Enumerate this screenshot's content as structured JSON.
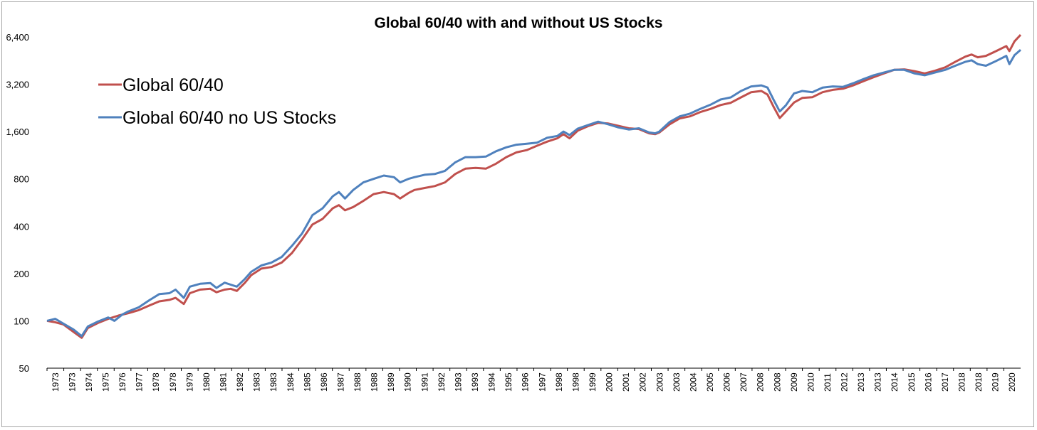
{
  "chart_data": {
    "type": "line",
    "title": "Global 60/40 with and without US Stocks",
    "xlabel": "",
    "ylabel": "",
    "y_scale": "log2",
    "ylim": [
      50,
      8000
    ],
    "yticks": [
      50,
      100,
      200,
      400,
      800,
      1600,
      3200,
      6400
    ],
    "ytick_labels": [
      "50",
      "100",
      "200",
      "400",
      "800",
      "1,600",
      "3,200",
      "6,400"
    ],
    "xlim": [
      1973.0,
      2020.7
    ],
    "xtick_labels": [
      "1973",
      "1973",
      "1974",
      "1975",
      "1976",
      "1977",
      "1978",
      "1978",
      "1979",
      "1980",
      "1981",
      "1982",
      "1983",
      "1983",
      "1984",
      "1985",
      "1986",
      "1987",
      "1988",
      "1988",
      "1989",
      "1990",
      "1991",
      "1992",
      "1993",
      "1993",
      "1994",
      "1995",
      "1996",
      "1997",
      "1998",
      "1998",
      "1999",
      "2000",
      "2001",
      "2002",
      "2003",
      "2003",
      "2004",
      "2005",
      "2006",
      "2007",
      "2008",
      "2008",
      "2009",
      "2010",
      "2011",
      "2012",
      "2013",
      "2013",
      "2014",
      "2015",
      "2016",
      "2017",
      "2018",
      "2018",
      "2019",
      "2020"
    ],
    "legend_position": "top-left",
    "grid": false,
    "series": [
      {
        "name": "Global 60/40",
        "color": "#c0504d",
        "points": [
          [
            1973.0,
            100
          ],
          [
            1973.4,
            98
          ],
          [
            1973.8,
            95
          ],
          [
            1974.3,
            85
          ],
          [
            1974.7,
            78
          ],
          [
            1975.0,
            90
          ],
          [
            1975.5,
            97
          ],
          [
            1976.0,
            103
          ],
          [
            1976.5,
            108
          ],
          [
            1977.0,
            112
          ],
          [
            1977.5,
            117
          ],
          [
            1978.0,
            125
          ],
          [
            1978.5,
            133
          ],
          [
            1979.0,
            136
          ],
          [
            1979.3,
            140
          ],
          [
            1979.7,
            128
          ],
          [
            1980.0,
            150
          ],
          [
            1980.5,
            158
          ],
          [
            1981.0,
            160
          ],
          [
            1981.3,
            152
          ],
          [
            1981.7,
            158
          ],
          [
            1982.0,
            160
          ],
          [
            1982.3,
            155
          ],
          [
            1982.7,
            175
          ],
          [
            1983.0,
            195
          ],
          [
            1983.5,
            215
          ],
          [
            1984.0,
            220
          ],
          [
            1984.5,
            235
          ],
          [
            1985.0,
            270
          ],
          [
            1985.5,
            330
          ],
          [
            1986.0,
            410
          ],
          [
            1986.5,
            445
          ],
          [
            1987.0,
            520
          ],
          [
            1987.3,
            545
          ],
          [
            1987.6,
            505
          ],
          [
            1988.0,
            530
          ],
          [
            1988.5,
            580
          ],
          [
            1989.0,
            640
          ],
          [
            1989.5,
            660
          ],
          [
            1990.0,
            640
          ],
          [
            1990.3,
            600
          ],
          [
            1990.7,
            650
          ],
          [
            1991.0,
            680
          ],
          [
            1991.5,
            700
          ],
          [
            1992.0,
            720
          ],
          [
            1992.5,
            760
          ],
          [
            1993.0,
            860
          ],
          [
            1993.5,
            930
          ],
          [
            1994.0,
            940
          ],
          [
            1994.5,
            930
          ],
          [
            1995.0,
            1000
          ],
          [
            1995.5,
            1100
          ],
          [
            1996.0,
            1180
          ],
          [
            1996.5,
            1220
          ],
          [
            1997.0,
            1300
          ],
          [
            1997.5,
            1380
          ],
          [
            1998.0,
            1450
          ],
          [
            1998.3,
            1540
          ],
          [
            1998.6,
            1450
          ],
          [
            1999.0,
            1620
          ],
          [
            1999.5,
            1730
          ],
          [
            2000.0,
            1820
          ],
          [
            2000.5,
            1800
          ],
          [
            2001.0,
            1740
          ],
          [
            2001.5,
            1680
          ],
          [
            2002.0,
            1660
          ],
          [
            2002.5,
            1560
          ],
          [
            2002.8,
            1540
          ],
          [
            2003.0,
            1580
          ],
          [
            2003.5,
            1780
          ],
          [
            2004.0,
            1940
          ],
          [
            2004.5,
            2000
          ],
          [
            2005.0,
            2130
          ],
          [
            2005.5,
            2230
          ],
          [
            2006.0,
            2360
          ],
          [
            2006.5,
            2440
          ],
          [
            2007.0,
            2640
          ],
          [
            2007.5,
            2850
          ],
          [
            2008.0,
            2900
          ],
          [
            2008.3,
            2750
          ],
          [
            2008.6,
            2300
          ],
          [
            2008.9,
            1950
          ],
          [
            2009.2,
            2150
          ],
          [
            2009.6,
            2450
          ],
          [
            2010.0,
            2620
          ],
          [
            2010.5,
            2650
          ],
          [
            2011.0,
            2850
          ],
          [
            2011.5,
            2950
          ],
          [
            2012.0,
            3000
          ],
          [
            2012.5,
            3150
          ],
          [
            2013.0,
            3350
          ],
          [
            2013.5,
            3550
          ],
          [
            2014.0,
            3750
          ],
          [
            2014.5,
            3950
          ],
          [
            2015.0,
            3980
          ],
          [
            2015.5,
            3880
          ],
          [
            2016.0,
            3750
          ],
          [
            2016.5,
            3900
          ],
          [
            2017.0,
            4100
          ],
          [
            2017.5,
            4450
          ],
          [
            2018.0,
            4800
          ],
          [
            2018.3,
            4950
          ],
          [
            2018.6,
            4750
          ],
          [
            2019.0,
            4850
          ],
          [
            2019.5,
            5200
          ],
          [
            2020.0,
            5600
          ],
          [
            2020.15,
            5200
          ],
          [
            2020.4,
            6000
          ],
          [
            2020.7,
            6600
          ]
        ]
      },
      {
        "name": "Global 60/40 no US Stocks",
        "color": "#4f81bd",
        "points": [
          [
            1973.0,
            100
          ],
          [
            1973.4,
            103
          ],
          [
            1973.8,
            96
          ],
          [
            1974.3,
            88
          ],
          [
            1974.7,
            80
          ],
          [
            1975.0,
            92
          ],
          [
            1975.5,
            99
          ],
          [
            1976.0,
            105
          ],
          [
            1976.3,
            100
          ],
          [
            1976.7,
            110
          ],
          [
            1977.0,
            115
          ],
          [
            1977.5,
            122
          ],
          [
            1978.0,
            135
          ],
          [
            1978.5,
            148
          ],
          [
            1979.0,
            150
          ],
          [
            1979.3,
            158
          ],
          [
            1979.7,
            140
          ],
          [
            1980.0,
            165
          ],
          [
            1980.5,
            172
          ],
          [
            1981.0,
            174
          ],
          [
            1981.3,
            162
          ],
          [
            1981.7,
            175
          ],
          [
            1982.0,
            170
          ],
          [
            1982.3,
            165
          ],
          [
            1982.7,
            185
          ],
          [
            1983.0,
            205
          ],
          [
            1983.5,
            225
          ],
          [
            1984.0,
            235
          ],
          [
            1984.5,
            255
          ],
          [
            1985.0,
            300
          ],
          [
            1985.5,
            360
          ],
          [
            1986.0,
            470
          ],
          [
            1986.5,
            520
          ],
          [
            1987.0,
            620
          ],
          [
            1987.3,
            660
          ],
          [
            1987.6,
            600
          ],
          [
            1988.0,
            680
          ],
          [
            1988.5,
            760
          ],
          [
            1989.0,
            800
          ],
          [
            1989.5,
            840
          ],
          [
            1990.0,
            820
          ],
          [
            1990.3,
            760
          ],
          [
            1990.7,
            800
          ],
          [
            1991.0,
            820
          ],
          [
            1991.5,
            850
          ],
          [
            1992.0,
            860
          ],
          [
            1992.5,
            900
          ],
          [
            1993.0,
            1020
          ],
          [
            1993.5,
            1100
          ],
          [
            1994.0,
            1100
          ],
          [
            1994.5,
            1110
          ],
          [
            1995.0,
            1200
          ],
          [
            1995.5,
            1270
          ],
          [
            1996.0,
            1320
          ],
          [
            1996.5,
            1340
          ],
          [
            1997.0,
            1360
          ],
          [
            1997.5,
            1460
          ],
          [
            1998.0,
            1500
          ],
          [
            1998.3,
            1600
          ],
          [
            1998.6,
            1520
          ],
          [
            1999.0,
            1670
          ],
          [
            1999.5,
            1760
          ],
          [
            2000.0,
            1850
          ],
          [
            2000.5,
            1780
          ],
          [
            2001.0,
            1700
          ],
          [
            2001.5,
            1650
          ],
          [
            2002.0,
            1680
          ],
          [
            2002.5,
            1580
          ],
          [
            2002.8,
            1560
          ],
          [
            2003.0,
            1600
          ],
          [
            2003.5,
            1840
          ],
          [
            2004.0,
            2000
          ],
          [
            2004.5,
            2080
          ],
          [
            2005.0,
            2230
          ],
          [
            2005.5,
            2370
          ],
          [
            2006.0,
            2560
          ],
          [
            2006.5,
            2640
          ],
          [
            2007.0,
            2900
          ],
          [
            2007.5,
            3100
          ],
          [
            2008.0,
            3150
          ],
          [
            2008.3,
            3050
          ],
          [
            2008.6,
            2550
          ],
          [
            2008.9,
            2150
          ],
          [
            2009.2,
            2350
          ],
          [
            2009.6,
            2800
          ],
          [
            2010.0,
            2900
          ],
          [
            2010.5,
            2850
          ],
          [
            2011.0,
            3050
          ],
          [
            2011.5,
            3100
          ],
          [
            2012.0,
            3080
          ],
          [
            2012.5,
            3250
          ],
          [
            2013.0,
            3450
          ],
          [
            2013.5,
            3650
          ],
          [
            2014.0,
            3800
          ],
          [
            2014.5,
            3950
          ],
          [
            2015.0,
            3950
          ],
          [
            2015.5,
            3750
          ],
          [
            2016.0,
            3650
          ],
          [
            2016.5,
            3800
          ],
          [
            2017.0,
            3950
          ],
          [
            2017.5,
            4200
          ],
          [
            2018.0,
            4450
          ],
          [
            2018.3,
            4550
          ],
          [
            2018.6,
            4300
          ],
          [
            2019.0,
            4200
          ],
          [
            2019.5,
            4500
          ],
          [
            2020.0,
            4850
          ],
          [
            2020.15,
            4300
          ],
          [
            2020.4,
            4900
          ],
          [
            2020.7,
            5300
          ]
        ]
      }
    ]
  }
}
